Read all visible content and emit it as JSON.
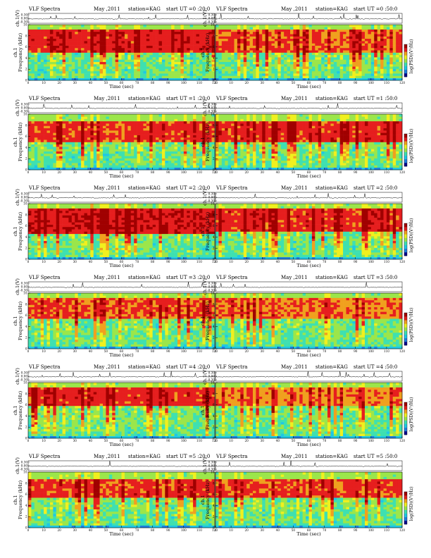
{
  "chart_data": {
    "type": "heatmap",
    "panel_header": {
      "title": "VLF Spectra",
      "date": "May ,2011",
      "station": "station=KAG",
      "start_prefix": "start  UT ="
    },
    "axes": {
      "xlabel": "Time (sec)",
      "ylabel": "Frequency (kHz)",
      "ylabel_top": "ch.1",
      "top_ylabel": "ch.1(V)",
      "colorbar_label": "log(PSD)(V²/Hz)",
      "xlim": [
        0,
        120
      ],
      "ylim": [
        0,
        10
      ],
      "x_ticks": [
        "0",
        "10",
        "20",
        "30",
        "40",
        "50",
        "60",
        "70",
        "80",
        "90",
        "100",
        "110",
        "120"
      ],
      "y_ticks": [
        "0",
        "2",
        "4",
        "6",
        "8",
        "10"
      ],
      "top_y_ticks": [
        "0.30",
        "0.00",
        "-0.30"
      ],
      "cb_ticks": [
        "",
        "",
        "-"
      ],
      "grid": false
    },
    "colors": [
      "#0a0a8c",
      "#1e7fe0",
      "#1ec8e6",
      "#3ee0b0",
      "#9be64a",
      "#f0f01e",
      "#f0a01e",
      "#e61e1e",
      "#a00000"
    ],
    "panels": [
      {
        "start": "0 :20:0",
        "band_low": 5.2,
        "band_high": 9.0,
        "intensity": 0.82
      },
      {
        "start": "0 :50:0",
        "band_low": 5.0,
        "band_high": 9.0,
        "intensity": 0.76
      },
      {
        "start": "1 :20:0",
        "band_low": 4.8,
        "band_high": 8.8,
        "intensity": 0.78
      },
      {
        "start": "1 :50:0",
        "band_low": 4.8,
        "band_high": 8.8,
        "intensity": 0.8
      },
      {
        "start": "2 :20:0",
        "band_low": 4.6,
        "band_high": 9.0,
        "intensity": 0.84
      },
      {
        "start": "2 :50:0",
        "band_low": 4.8,
        "band_high": 9.0,
        "intensity": 0.8
      },
      {
        "start": "3 :20:0",
        "band_low": 5.6,
        "band_high": 9.2,
        "intensity": 0.76
      },
      {
        "start": "3 :50:0",
        "band_low": 5.6,
        "band_high": 9.2,
        "intensity": 0.74
      },
      {
        "start": "4 :20:0",
        "band_low": 5.8,
        "band_high": 9.0,
        "intensity": 0.8
      },
      {
        "start": "4 :50:0",
        "band_low": 5.8,
        "band_high": 9.0,
        "intensity": 0.72
      },
      {
        "start": "5 :20:0",
        "band_low": 5.4,
        "band_high": 8.8,
        "intensity": 0.78
      },
      {
        "start": "5 :50:0",
        "band_low": 5.4,
        "band_high": 8.8,
        "intensity": 0.78
      }
    ]
  }
}
